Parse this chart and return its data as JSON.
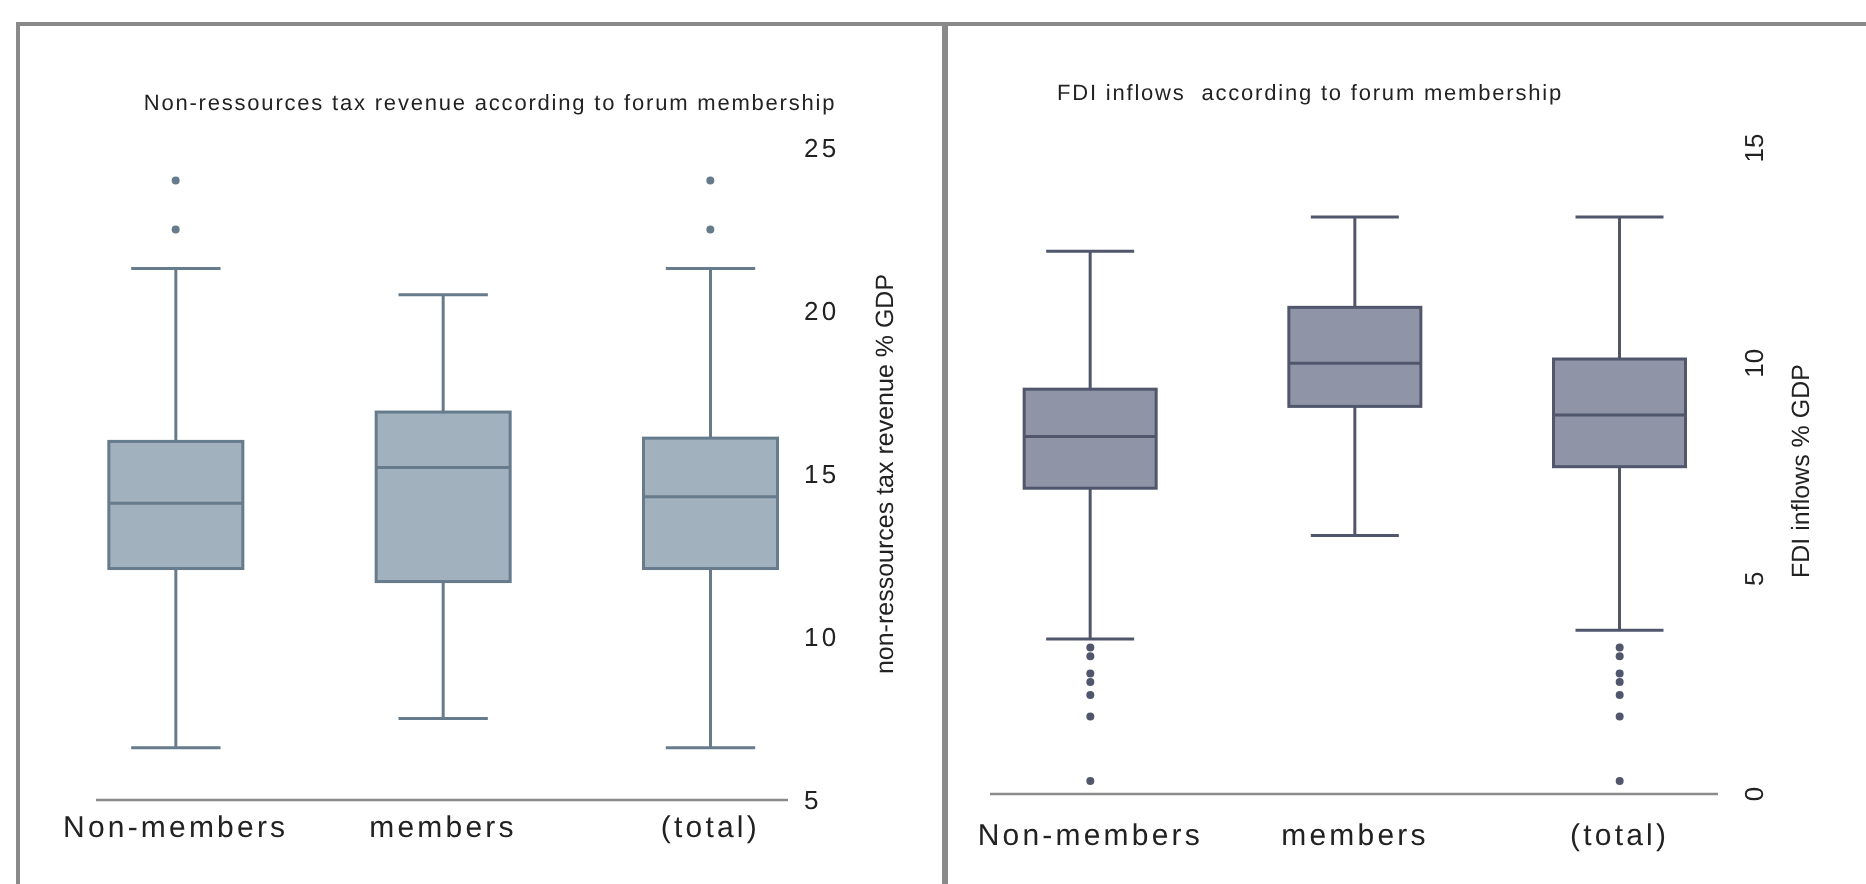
{
  "chart_data": [
    {
      "type": "box",
      "title": "Non-ressources tax revenue according to forum membership",
      "ylabel": "non-ressources tax revenue % GDP",
      "categories": [
        "Non-members",
        "members",
        "(total)"
      ],
      "series": [
        {
          "color": "#a1b1bd",
          "boxes": [
            {
              "low": 6.6,
              "q1": 12.1,
              "median": 14.1,
              "q3": 16.0,
              "high": 21.3,
              "outliers": [
                24.0,
                22.5
              ]
            },
            {
              "low": 7.5,
              "q1": 11.7,
              "median": 15.2,
              "q3": 16.9,
              "high": 20.5
            },
            {
              "low": 6.6,
              "q1": 12.1,
              "median": 14.3,
              "q3": 16.1,
              "high": 21.3,
              "outliers": [
                24.0,
                22.5
              ]
            }
          ]
        }
      ],
      "ylim": [
        5,
        25
      ],
      "yticks": [
        5,
        10,
        15,
        20,
        25
      ]
    },
    {
      "type": "box",
      "title": "FDI inflows  according to forum membership",
      "ylabel": "FDI inflows % GDP",
      "categories": [
        "Non-members",
        "members",
        "(total)"
      ],
      "series": [
        {
          "color": "#8f95a7",
          "boxes": [
            {
              "low": 3.6,
              "q1": 7.1,
              "median": 8.3,
              "q3": 9.4,
              "high": 12.6,
              "outliers": [
                3.4,
                3.2,
                2.8,
                2.6,
                2.3,
                1.8,
                0.3
              ]
            },
            {
              "low": 6.0,
              "q1": 9.0,
              "median": 10.0,
              "q3": 11.3,
              "high": 13.4
            },
            {
              "low": 3.8,
              "q1": 7.6,
              "median": 8.8,
              "q3": 10.1,
              "high": 13.4,
              "outliers": [
                3.4,
                3.2,
                2.8,
                2.6,
                2.3,
                1.8,
                0.3
              ]
            }
          ]
        }
      ],
      "ylim": [
        0,
        15
      ],
      "yticks": [
        0,
        5,
        10,
        15
      ]
    }
  ]
}
